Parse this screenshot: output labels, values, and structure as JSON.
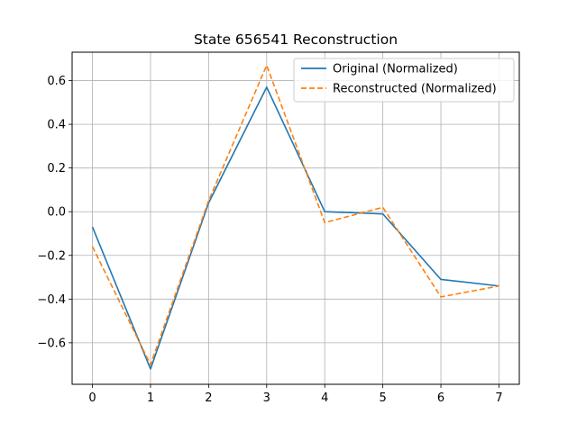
{
  "chart_data": {
    "type": "line",
    "title": "State 656541 Reconstruction",
    "xlabel": "",
    "ylabel": "",
    "x": [
      0,
      1,
      2,
      3,
      4,
      5,
      6,
      7
    ],
    "xlim": [
      -0.35,
      7.35
    ],
    "ylim": [
      -0.79,
      0.73
    ],
    "xticks": [
      0,
      1,
      2,
      3,
      4,
      5,
      6,
      7
    ],
    "yticks": [
      0.6,
      0.4,
      0.2,
      0.0,
      -0.2,
      -0.4,
      -0.6
    ],
    "ytick_labels": [
      "0.6",
      "0.4",
      "0.2",
      "0.0",
      "−0.2",
      "−0.4",
      "−0.6"
    ],
    "grid": true,
    "legend_position": "top-right",
    "series": [
      {
        "name": "Original (Normalized)",
        "values": [
          -0.07,
          -0.72,
          0.04,
          0.57,
          0.0,
          -0.01,
          -0.31,
          -0.34
        ],
        "color": "#1f77b4",
        "style": "solid"
      },
      {
        "name": "Reconstructed (Normalized)",
        "values": [
          -0.16,
          -0.7,
          0.05,
          0.67,
          -0.05,
          0.02,
          -0.39,
          -0.34
        ],
        "color": "#ff7f0e",
        "style": "dashed"
      }
    ]
  }
}
